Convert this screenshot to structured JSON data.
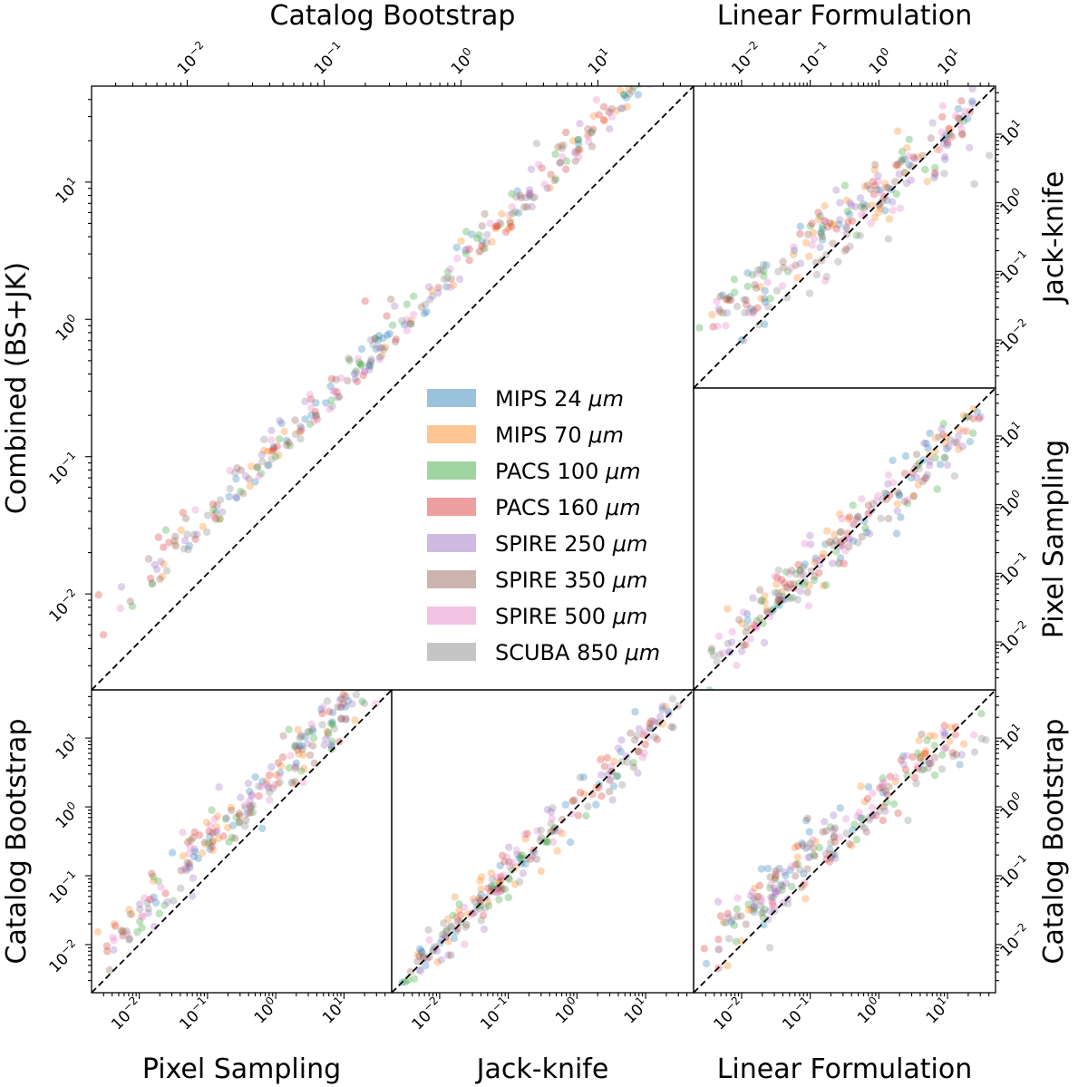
{
  "chart_data": {
    "type": "scatter",
    "scale": "log",
    "panels": [
      {
        "id": "combined-vs-bootstrap",
        "xlabel": "Catalog Bootstrap",
        "ylabel": "Combined (BS+JK)",
        "xlim": [
          0.002,
          50
        ],
        "ylim": [
          0.002,
          50
        ],
        "x_ticks": [
          "10^-2",
          "10^-1",
          "10^0",
          "10^1"
        ],
        "y_ticks": [
          "10^-2",
          "10^-1",
          "10^0",
          "10^1"
        ],
        "reference_line": "y = x",
        "trend": "points lie above y = x, offset about x1.5-3"
      },
      {
        "id": "jackknife-vs-linear",
        "xlabel": "Linear Formulation",
        "ylabel": "Jack-knife",
        "xlim": [
          0.002,
          50
        ],
        "ylim": [
          0.002,
          50
        ],
        "x_ticks": [
          "10^-2",
          "10^-1",
          "10^0",
          "10^1"
        ],
        "y_ticks": [
          "10^-2",
          "10^-1",
          "10^0",
          "10^1"
        ],
        "reference_line": "y = x"
      },
      {
        "id": "pixel-vs-linear",
        "xlabel": "Linear Formulation",
        "ylabel": "Pixel Sampling",
        "xlim": [
          0.002,
          50
        ],
        "ylim": [
          0.002,
          50
        ],
        "x_ticks": [
          "10^-2",
          "10^-1",
          "10^0",
          "10^1"
        ],
        "y_ticks": [
          "10^-2",
          "10^-1",
          "10^0",
          "10^1"
        ],
        "reference_line": "y = x"
      },
      {
        "id": "bootstrap-vs-pixel",
        "xlabel": "Pixel Sampling",
        "ylabel": "Catalog Bootstrap",
        "xlim": [
          0.002,
          50
        ],
        "ylim": [
          0.002,
          50
        ],
        "x_ticks": [
          "10^-2",
          "10^-1",
          "10^0",
          "10^1"
        ],
        "y_ticks": [
          "10^-2",
          "10^-1",
          "10^0",
          "10^1"
        ],
        "reference_line": "y = x"
      },
      {
        "id": "bootstrap-vs-jackknife",
        "xlabel": "Jack-knife",
        "ylabel": "Catalog Bootstrap",
        "xlim": [
          0.002,
          50
        ],
        "ylim": [
          0.002,
          50
        ],
        "x_ticks": [
          "10^-2",
          "10^-1",
          "10^0",
          "10^1"
        ],
        "y_ticks": [
          "10^-2",
          "10^-1",
          "10^0",
          "10^1"
        ],
        "reference_line": "y = x"
      },
      {
        "id": "bootstrap-vs-linear",
        "xlabel": "Linear Formulation",
        "ylabel": "Catalog Bootstrap",
        "xlim": [
          0.002,
          50
        ],
        "ylim": [
          0.002,
          50
        ],
        "x_ticks": [
          "10^-2",
          "10^-1",
          "10^0",
          "10^1"
        ],
        "y_ticks": [
          "10^-2",
          "10^-1",
          "10^0",
          "10^1"
        ],
        "reference_line": "y = x"
      }
    ],
    "series": [
      {
        "name": "MIPS 24 μm",
        "band": "MIPS 24",
        "color": "#1f77b4"
      },
      {
        "name": "MIPS 70 μm",
        "band": "MIPS 70",
        "color": "#ff7f0e"
      },
      {
        "name": "PACS 100 μm",
        "band": "PACS 100",
        "color": "#2ca02c"
      },
      {
        "name": "PACS 160 μm",
        "band": "PACS 160",
        "color": "#d62728"
      },
      {
        "name": "SPIRE 250 μm",
        "band": "SPIRE 250",
        "color": "#9467bd"
      },
      {
        "name": "SPIRE 350 μm",
        "band": "SPIRE 350",
        "color": "#8c564b"
      },
      {
        "name": "SPIRE 500 μm",
        "band": "SPIRE 500",
        "color": "#e377c2"
      },
      {
        "name": "SCUBA 850 μm",
        "band": "SCUBA 850",
        "color": "#7f7f7f"
      }
    ],
    "legend": {
      "location": "center of combined panel",
      "unit": "μm"
    }
  }
}
